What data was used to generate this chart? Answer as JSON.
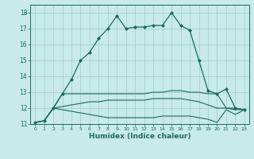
{
  "xlabel": "Humidex (Indice chaleur)",
  "ylabel": "",
  "xlim": [
    -0.5,
    23.5
  ],
  "ylim": [
    11,
    18.5
  ],
  "yticks": [
    11,
    12,
    13,
    14,
    15,
    16,
    17,
    18
  ],
  "xticks": [
    0,
    1,
    2,
    3,
    4,
    5,
    6,
    7,
    8,
    9,
    10,
    11,
    12,
    13,
    14,
    15,
    16,
    17,
    18,
    19,
    20,
    21,
    22,
    23
  ],
  "background_color": "#c8eae8",
  "grid_color": "#9ececa",
  "line_color": "#1a6b5a",
  "lines": [
    {
      "x": [
        0,
        1,
        2,
        3,
        4,
        5,
        6,
        7,
        8,
        9,
        10,
        11,
        12,
        13,
        14,
        15,
        16,
        17,
        18,
        19,
        20,
        21,
        22,
        23
      ],
      "y": [
        11.1,
        11.2,
        12.0,
        12.9,
        13.8,
        15.0,
        15.5,
        16.4,
        17.0,
        17.8,
        17.0,
        17.1,
        17.1,
        17.2,
        17.2,
        18.0,
        17.2,
        16.9,
        15.0,
        13.1,
        12.9,
        13.2,
        12.0,
        11.9
      ],
      "marker": "D",
      "markersize": 2.0,
      "linewidth": 0.9,
      "color": "#1a6b5a"
    },
    {
      "x": [
        0,
        1,
        2,
        3,
        4,
        5,
        6,
        7,
        8,
        9,
        10,
        11,
        12,
        13,
        14,
        15,
        16,
        17,
        18,
        19,
        20,
        21,
        22,
        23
      ],
      "y": [
        11.1,
        11.2,
        12.0,
        12.9,
        12.9,
        12.9,
        12.9,
        12.9,
        12.9,
        12.9,
        12.9,
        12.9,
        12.9,
        13.0,
        13.0,
        13.1,
        13.1,
        13.0,
        13.0,
        12.9,
        12.9,
        12.0,
        12.0,
        11.9
      ],
      "marker": null,
      "markersize": 0,
      "linewidth": 0.8,
      "color": "#1a6b5a"
    },
    {
      "x": [
        0,
        1,
        2,
        3,
        4,
        5,
        6,
        7,
        8,
        9,
        10,
        11,
        12,
        13,
        14,
        15,
        16,
        17,
        18,
        19,
        20,
        21,
        22,
        23
      ],
      "y": [
        11.1,
        11.2,
        12.0,
        12.1,
        12.2,
        12.3,
        12.4,
        12.4,
        12.5,
        12.5,
        12.5,
        12.5,
        12.5,
        12.6,
        12.6,
        12.6,
        12.6,
        12.5,
        12.4,
        12.2,
        12.0,
        12.0,
        11.9,
        11.9
      ],
      "marker": null,
      "markersize": 0,
      "linewidth": 0.8,
      "color": "#1a6b5a"
    },
    {
      "x": [
        0,
        1,
        2,
        3,
        4,
        5,
        6,
        7,
        8,
        9,
        10,
        11,
        12,
        13,
        14,
        15,
        16,
        17,
        18,
        19,
        20,
        21,
        22,
        23
      ],
      "y": [
        11.1,
        11.2,
        12.0,
        11.9,
        11.8,
        11.7,
        11.6,
        11.5,
        11.4,
        11.4,
        11.4,
        11.4,
        11.4,
        11.4,
        11.5,
        11.5,
        11.5,
        11.5,
        11.4,
        11.3,
        11.1,
        11.9,
        11.6,
        11.9
      ],
      "marker": null,
      "markersize": 0,
      "linewidth": 0.8,
      "color": "#1a6b5a"
    }
  ]
}
